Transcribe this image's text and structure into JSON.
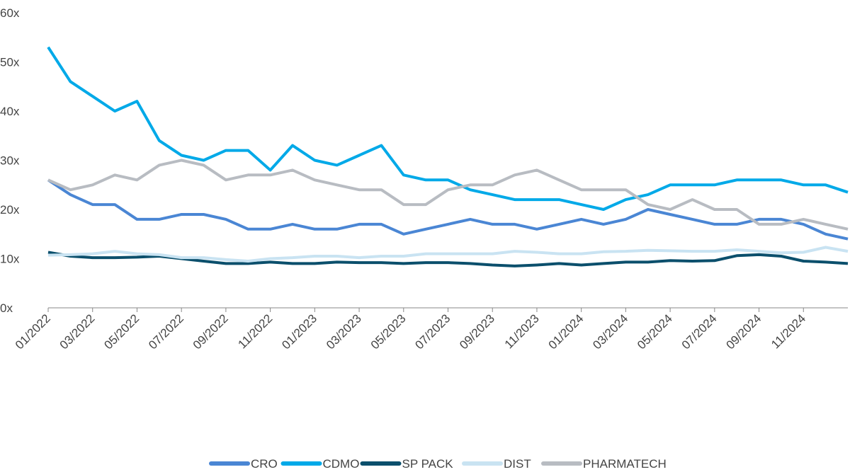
{
  "chart_data": {
    "type": "line",
    "categories": [
      "01/2022",
      null,
      "03/2022",
      null,
      "05/2022",
      null,
      "07/2022",
      null,
      "09/2022",
      null,
      "11/2022",
      null,
      "01/2023",
      null,
      "03/2023",
      null,
      "05/2023",
      null,
      "07/2023",
      null,
      "09/2023",
      null,
      "11/2023",
      null,
      "01/2024",
      null,
      "03/2024",
      null,
      "05/2024",
      null,
      "07/2024",
      null,
      "09/2024",
      null,
      "11/2024",
      null,
      null
    ],
    "series": [
      {
        "name": "CRO",
        "color": "#4a86d4",
        "values": [
          26,
          23,
          21,
          21,
          18,
          18,
          19,
          19,
          18,
          16,
          16,
          17,
          16,
          16,
          17,
          17,
          15,
          16,
          17,
          18,
          17,
          17,
          16,
          17,
          18,
          17,
          18,
          20,
          19,
          18,
          17,
          17,
          18,
          18,
          17,
          15,
          14
        ]
      },
      {
        "name": "CDMO",
        "color": "#00a9e8",
        "values": [
          53,
          46,
          43,
          40,
          42,
          34,
          31,
          30,
          32,
          32,
          28,
          33,
          30,
          29,
          31,
          33,
          27,
          26,
          26,
          24,
          23,
          22,
          22,
          22,
          21,
          20,
          22,
          23,
          25,
          25,
          25,
          26,
          26,
          26,
          25,
          25,
          23.5
        ]
      },
      {
        "name": "SP PACK",
        "color": "#0b4f6c",
        "values": [
          11.3,
          10.5,
          10.2,
          10.2,
          10.3,
          10.5,
          10,
          9.5,
          9,
          9,
          9.3,
          9,
          9,
          9.3,
          9.2,
          9.2,
          9,
          9.2,
          9.2,
          9,
          8.7,
          8.5,
          8.7,
          9,
          8.7,
          9,
          9.3,
          9.3,
          9.6,
          9.5,
          9.6,
          10.6,
          10.8,
          10.5,
          9.5,
          9.3,
          9
        ]
      },
      {
        "name": "DIST",
        "color": "#c9e3f2",
        "values": [
          10.7,
          10.8,
          11,
          11.5,
          11,
          10.8,
          10.2,
          10.2,
          9.8,
          9.5,
          10,
          10.2,
          10.5,
          10.5,
          10.2,
          10.5,
          10.5,
          11,
          11,
          11,
          11,
          11.5,
          11.3,
          11,
          11,
          11.4,
          11.5,
          11.7,
          11.6,
          11.5,
          11.5,
          11.8,
          11.5,
          11.2,
          11.3,
          12.3,
          11.5
        ]
      },
      {
        "name": "PHARMATECH",
        "color": "#b8bcc2",
        "values": [
          26,
          24,
          25,
          27,
          26,
          29,
          30,
          29,
          26,
          27,
          27,
          28,
          26,
          25,
          24,
          24,
          21,
          21,
          24,
          25,
          25,
          27,
          28,
          26,
          24,
          24,
          24,
          21,
          20,
          22,
          20,
          20,
          17,
          17,
          18,
          17,
          16
        ]
      }
    ],
    "ylim": [
      0,
      60
    ],
    "yticks": [
      {
        "value": 0,
        "label": "0x"
      },
      {
        "value": 10,
        "label": "10x"
      },
      {
        "value": 20,
        "label": "20x"
      },
      {
        "value": 30,
        "label": "30x"
      },
      {
        "value": 40,
        "label": "40x"
      },
      {
        "value": 50,
        "label": "50x"
      },
      {
        "value": 60,
        "label": "60x"
      }
    ],
    "legend": "bottom"
  }
}
